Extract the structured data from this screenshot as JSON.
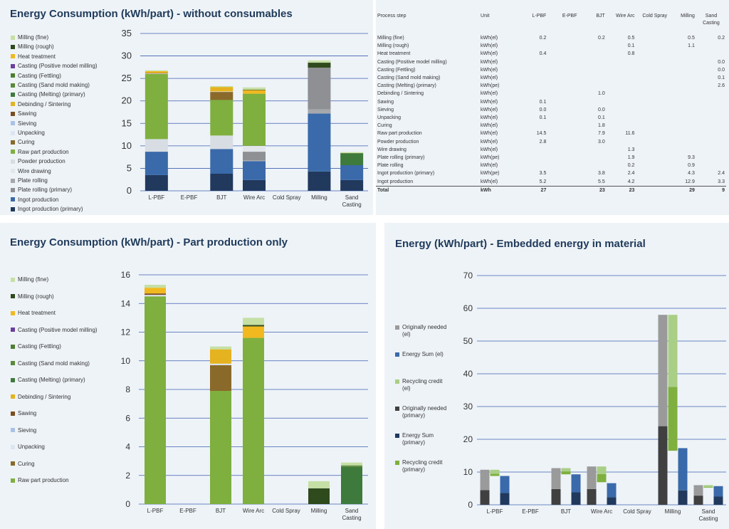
{
  "panel1": {
    "title": "Energy Consumption (kWh/part) - without consumables",
    "legend": [
      {
        "label": "Milling (fine)",
        "color": "#c5dfa5"
      },
      {
        "label": "Milling (rough)",
        "color": "#2f4a1c"
      },
      {
        "label": "Heat treatment",
        "color": "#f2b81f"
      },
      {
        "label": "Casting (Positive model milling)",
        "color": "#6b3fa0"
      },
      {
        "label": "Casting (Fettling)",
        "color": "#4e7f31"
      },
      {
        "label": "Casting (Sand mold making)",
        "color": "#5b8a3a"
      },
      {
        "label": "Casting (Melting) (primary)",
        "color": "#3f7a3d"
      },
      {
        "label": "Debinding / Sintering",
        "color": "#e6b320"
      },
      {
        "label": "Sawing",
        "color": "#7a4e1e"
      },
      {
        "label": "Sieving",
        "color": "#a9c3e8"
      },
      {
        "label": "Unpacking",
        "color": "#dde6f0"
      },
      {
        "label": "Curing",
        "color": "#8a6a2a"
      },
      {
        "label": "Raw part production",
        "color": "#7fb03f"
      },
      {
        "label": "Powder production",
        "color": "#d8dde3"
      },
      {
        "label": "Wire drawing",
        "color": "#e3e6ea"
      },
      {
        "label": "Plate rolling",
        "color": "#a6a8ab"
      },
      {
        "label": "Plate rolling (primary)",
        "color": "#8e9094"
      },
      {
        "label": "Ingot production",
        "color": "#3b6aaa"
      },
      {
        "label": "Ingot production (primary)",
        "color": "#22395e"
      }
    ],
    "chart_data": {
      "type": "bar",
      "stacked": true,
      "categories": [
        "L-PBF",
        "E-PBF",
        "BJT",
        "Wire Arc",
        "Cold Spray",
        "Milling",
        "Sand Casting"
      ],
      "ylim": [
        0,
        35
      ],
      "yticks": [
        0,
        5,
        10,
        15,
        20,
        25,
        30,
        35
      ],
      "series": [
        {
          "name": "Ingot production (primary)",
          "color": "#22395e",
          "values": [
            3.5,
            0,
            3.8,
            2.4,
            0,
            4.3,
            2.4
          ]
        },
        {
          "name": "Ingot production",
          "color": "#3b6aaa",
          "values": [
            5.2,
            0,
            5.5,
            4.2,
            0,
            12.9,
            3.3
          ]
        },
        {
          "name": "Plate rolling",
          "color": "#a6a8ab",
          "values": [
            0,
            0,
            0,
            0.2,
            0,
            0.9,
            0
          ]
        },
        {
          "name": "Plate rolling (primary)",
          "color": "#8e9094",
          "values": [
            0,
            0,
            0,
            1.9,
            0,
            9.3,
            0
          ]
        },
        {
          "name": "Wire drawing",
          "color": "#e3e6ea",
          "values": [
            0,
            0,
            0,
            1.3,
            0,
            0,
            0
          ]
        },
        {
          "name": "Powder production",
          "color": "#d8dde3",
          "values": [
            2.8,
            0,
            3.0,
            0,
            0,
            0,
            0
          ]
        },
        {
          "name": "Raw part production",
          "color": "#7fb03f",
          "values": [
            14.5,
            0,
            7.9,
            11.6,
            0,
            0,
            0
          ]
        },
        {
          "name": "Curing",
          "color": "#8a6a2a",
          "values": [
            0,
            0,
            1.8,
            0,
            0,
            0,
            0
          ]
        },
        {
          "name": "Unpacking",
          "color": "#dde6f0",
          "values": [
            0.1,
            0,
            0.1,
            0,
            0,
            0,
            0
          ]
        },
        {
          "name": "Sieving",
          "color": "#a9c3e8",
          "values": [
            0,
            0,
            0,
            0,
            0,
            0,
            0
          ]
        },
        {
          "name": "Sawing",
          "color": "#7a4e1e",
          "values": [
            0.1,
            0,
            0,
            0,
            0,
            0,
            0
          ]
        },
        {
          "name": "Debinding / Sintering",
          "color": "#e6b320",
          "values": [
            0,
            0,
            1.0,
            0,
            0,
            0,
            0
          ]
        },
        {
          "name": "Casting (Melting) (primary)",
          "color": "#3f7a3d",
          "values": [
            0,
            0,
            0,
            0,
            0,
            0,
            2.6
          ]
        },
        {
          "name": "Casting (Sand mold making)",
          "color": "#5b8a3a",
          "values": [
            0,
            0,
            0,
            0,
            0,
            0,
            0.1
          ]
        },
        {
          "name": "Casting (Fettling)",
          "color": "#4e7f31",
          "values": [
            0,
            0,
            0,
            0,
            0,
            0,
            0
          ]
        },
        {
          "name": "Casting (Positive model milling)",
          "color": "#6b3fa0",
          "values": [
            0,
            0,
            0,
            0,
            0,
            0,
            0
          ]
        },
        {
          "name": "Heat treatment",
          "color": "#f2b81f",
          "values": [
            0.4,
            0,
            0,
            0.8,
            0,
            0,
            0
          ]
        },
        {
          "name": "Milling (rough)",
          "color": "#2f4a1c",
          "values": [
            0,
            0,
            0,
            0.1,
            0,
            1.1,
            0
          ]
        },
        {
          "name": "Milling (fine)",
          "color": "#c5dfa5",
          "values": [
            0.2,
            0,
            0.2,
            0.5,
            0,
            0.5,
            0.2
          ]
        }
      ]
    }
  },
  "table": {
    "headers": [
      "Process step",
      "Unit",
      "L-PBF",
      "E-PBF",
      "BJT",
      "Wire Arc",
      "Cold Spray",
      "Milling",
      "Sand Casting"
    ],
    "rows": [
      [
        "Milling (fine)",
        "kWh(el)",
        "0.2",
        "",
        "0.2",
        "0.5",
        "",
        "0.5",
        "0.2"
      ],
      [
        "Milling (rough)",
        "kWh(el)",
        "",
        "",
        "",
        "0.1",
        "",
        "1.1",
        ""
      ],
      [
        "Heat treatment",
        "kWh(el)",
        "0.4",
        "",
        "",
        "0.8",
        "",
        "",
        ""
      ],
      [
        "Casting (Positive model milling)",
        "kWh(el)",
        "",
        "",
        "",
        "",
        "",
        "",
        "0.0"
      ],
      [
        "Casting (Fettling)",
        "kWh(el)",
        "",
        "",
        "",
        "",
        "",
        "",
        "0.0"
      ],
      [
        "Casting (Sand mold making)",
        "kWh(el)",
        "",
        "",
        "",
        "",
        "",
        "",
        "0.1"
      ],
      [
        "Casting (Melting) (primary)",
        "kWh(pe)",
        "",
        "",
        "",
        "",
        "",
        "",
        "2.6"
      ],
      [
        "Debinding / Sintering",
        "kWh(el)",
        "",
        "",
        "1.0",
        "",
        "",
        "",
        ""
      ],
      [
        "Sawing",
        "kWh(el)",
        "0.1",
        "",
        "",
        "",
        "",
        "",
        ""
      ],
      [
        "Sieving",
        "kWh(el)",
        "0.0",
        "",
        "0.0",
        "",
        "",
        "",
        ""
      ],
      [
        "Unpacking",
        "kWh(el)",
        "0.1",
        "",
        "0.1",
        "",
        "",
        "",
        ""
      ],
      [
        "Curing",
        "kWh(el)",
        "",
        "",
        "1.8",
        "",
        "",
        "",
        ""
      ],
      [
        "Raw part production",
        "kWh(el)",
        "14.5",
        "",
        "7.9",
        "11.6",
        "",
        "",
        ""
      ],
      [
        "Powder production",
        "kWh(el)",
        "2.8",
        "",
        "3.0",
        "",
        "",
        "",
        ""
      ],
      [
        "Wire drawing",
        "kWh(el)",
        "",
        "",
        "",
        "1.3",
        "",
        "",
        ""
      ],
      [
        "Plate rolling (primary)",
        "kWh(pe)",
        "",
        "",
        "",
        "1.9",
        "",
        "9.3",
        ""
      ],
      [
        "Plate rolling",
        "kWh(el)",
        "",
        "",
        "",
        "0.2",
        "",
        "0.9",
        ""
      ],
      [
        "Ingot production (primary)",
        "kWh(pe)",
        "3.5",
        "",
        "3.8",
        "2.4",
        "",
        "4.3",
        "2.4"
      ],
      [
        "Ingot production",
        "kWh(el)",
        "5.2",
        "",
        "5.5",
        "4.2",
        "",
        "12.9",
        "3.3"
      ]
    ],
    "total": [
      "Total",
      "kWh",
      "27",
      "",
      "23",
      "23",
      "",
      "29",
      "9"
    ]
  },
  "panel3": {
    "title": "Energy Consumption (kWh/part) - Part production only",
    "legend": [
      {
        "label": "Milling (fine)",
        "color": "#c5dfa5"
      },
      {
        "label": "Milling (rough)",
        "color": "#2f4a1c"
      },
      {
        "label": "Heat treatment",
        "color": "#f2b81f"
      },
      {
        "label": "Casting (Positive model milling)",
        "color": "#6b3fa0"
      },
      {
        "label": "Casting (Fettling)",
        "color": "#4e7f31"
      },
      {
        "label": "Casting (Sand mold making)",
        "color": "#5b8a3a"
      },
      {
        "label": "Casting (Melting) (primary)",
        "color": "#3f7a3d"
      },
      {
        "label": "Debinding / Sintering",
        "color": "#e6b320"
      },
      {
        "label": "Sawing",
        "color": "#7a4e1e"
      },
      {
        "label": "Sieving",
        "color": "#a9c3e8"
      },
      {
        "label": "Unpacking",
        "color": "#dde6f0"
      },
      {
        "label": "Curing",
        "color": "#8a6a2a"
      },
      {
        "label": "Raw part production",
        "color": "#7fb03f"
      }
    ],
    "chart_data": {
      "type": "bar",
      "stacked": true,
      "categories": [
        "L-PBF",
        "E-PBF",
        "BJT",
        "Wire Arc",
        "Cold Spray",
        "Milling",
        "Sand Casting"
      ],
      "ylim": [
        0,
        16
      ],
      "yticks": [
        0,
        2,
        4,
        6,
        8,
        10,
        12,
        14,
        16
      ],
      "series": [
        {
          "name": "Raw part production",
          "color": "#7fb03f",
          "values": [
            14.5,
            0,
            7.9,
            11.6,
            0,
            0,
            0
          ]
        },
        {
          "name": "Curing",
          "color": "#8a6a2a",
          "values": [
            0,
            0,
            1.8,
            0,
            0,
            0,
            0
          ]
        },
        {
          "name": "Unpacking",
          "color": "#dde6f0",
          "values": [
            0.1,
            0,
            0.1,
            0,
            0,
            0,
            0
          ]
        },
        {
          "name": "Sieving",
          "color": "#a9c3e8",
          "values": [
            0,
            0,
            0,
            0,
            0,
            0,
            0
          ]
        },
        {
          "name": "Sawing",
          "color": "#7a4e1e",
          "values": [
            0.1,
            0,
            0,
            0,
            0,
            0,
            0
          ]
        },
        {
          "name": "Debinding / Sintering",
          "color": "#e6b320",
          "values": [
            0,
            0,
            1.0,
            0,
            0,
            0,
            0
          ]
        },
        {
          "name": "Casting (Melting) (primary)",
          "color": "#3f7a3d",
          "values": [
            0,
            0,
            0,
            0,
            0,
            0,
            2.6
          ]
        },
        {
          "name": "Casting (Sand mold making)",
          "color": "#5b8a3a",
          "values": [
            0,
            0,
            0,
            0,
            0,
            0,
            0.1
          ]
        },
        {
          "name": "Casting (Fettling)",
          "color": "#4e7f31",
          "values": [
            0,
            0,
            0,
            0,
            0,
            0,
            0
          ]
        },
        {
          "name": "Casting (Positive model milling)",
          "color": "#6b3fa0",
          "values": [
            0,
            0,
            0,
            0,
            0,
            0,
            0
          ]
        },
        {
          "name": "Heat treatment",
          "color": "#f2b81f",
          "values": [
            0.4,
            0,
            0,
            0.8,
            0,
            0,
            0
          ]
        },
        {
          "name": "Milling (rough)",
          "color": "#2f4a1c",
          "values": [
            0,
            0,
            0,
            0.1,
            0,
            1.1,
            0
          ]
        },
        {
          "name": "Milling (fine)",
          "color": "#c5dfa5",
          "values": [
            0.2,
            0,
            0.2,
            0.5,
            0,
            0.5,
            0.2
          ]
        }
      ]
    }
  },
  "panel4": {
    "title": "Energy (kWh/part) - Embedded energy in material",
    "legend": [
      {
        "label": "Originally needed (el)",
        "color": "#9a9a9a"
      },
      {
        "label": "Energy Sum (el)",
        "color": "#3b6aaa"
      },
      {
        "label": "Recycling credit (el)",
        "color": "#a9cf86"
      },
      {
        "label": "Originally needed (primary)",
        "color": "#404040"
      },
      {
        "label": "Energy Sum (primary)",
        "color": "#22395e"
      },
      {
        "label": "Recycling credit (primary)",
        "color": "#7fb03f"
      }
    ],
    "chart_data": {
      "type": "waterfall-bar",
      "categories": [
        "L-PBF",
        "E-PBF",
        "BJT",
        "Wire Arc",
        "Cold Spray",
        "Milling",
        "Sand Casting"
      ],
      "ylim": [
        0,
        70
      ],
      "yticks": [
        0,
        10,
        20,
        30,
        40,
        50,
        60,
        70
      ],
      "originally_needed_primary": [
        4.5,
        0,
        4.8,
        4.8,
        0,
        24,
        2.8
      ],
      "originally_needed_el": [
        6.2,
        0,
        6.4,
        6.9,
        0,
        34,
        3.2
      ],
      "recycling_credit_primary": [
        0.7,
        0,
        0.9,
        2.5,
        0,
        19.5,
        0.2
      ],
      "recycling_credit_el": [
        1.2,
        0,
        1.0,
        2.3,
        0,
        22,
        0.6
      ],
      "energy_sum_primary": [
        3.6,
        0,
        3.8,
        2.3,
        0,
        4.4,
        2.5
      ],
      "energy_sum_el": [
        5.2,
        0,
        5.5,
        4.3,
        0,
        12.9,
        3.2
      ]
    }
  }
}
